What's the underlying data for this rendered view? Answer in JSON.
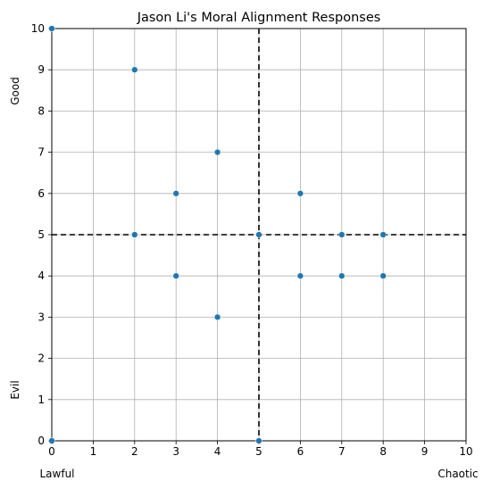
{
  "chart_data": {
    "type": "scatter",
    "title": "Jason Li's Moral Alignment Responses",
    "xlim": [
      0,
      10
    ],
    "ylim": [
      0,
      10
    ],
    "x_ticks": [
      0,
      1,
      2,
      3,
      4,
      5,
      6,
      7,
      8,
      9,
      10
    ],
    "y_ticks": [
      0,
      1,
      2,
      3,
      4,
      5,
      6,
      7,
      8,
      9,
      10
    ],
    "grid": true,
    "corner_labels": {
      "x_left": "Lawful",
      "x_right": "Chaotic",
      "y_top": "Good",
      "y_bottom": "Evil"
    },
    "reference_lines": {
      "x": 5,
      "y": 5,
      "style": "dashed",
      "color": "#000000"
    },
    "marker_color": "#1f77b4",
    "points": [
      {
        "x": 0,
        "y": 10
      },
      {
        "x": 2,
        "y": 9
      },
      {
        "x": 4,
        "y": 7
      },
      {
        "x": 3,
        "y": 6
      },
      {
        "x": 6,
        "y": 6
      },
      {
        "x": 2,
        "y": 5
      },
      {
        "x": 5,
        "y": 5
      },
      {
        "x": 7,
        "y": 5
      },
      {
        "x": 8,
        "y": 5
      },
      {
        "x": 3,
        "y": 4
      },
      {
        "x": 6,
        "y": 4
      },
      {
        "x": 7,
        "y": 4
      },
      {
        "x": 8,
        "y": 4
      },
      {
        "x": 4,
        "y": 3
      },
      {
        "x": 0,
        "y": 0
      },
      {
        "x": 5,
        "y": 0
      }
    ]
  }
}
